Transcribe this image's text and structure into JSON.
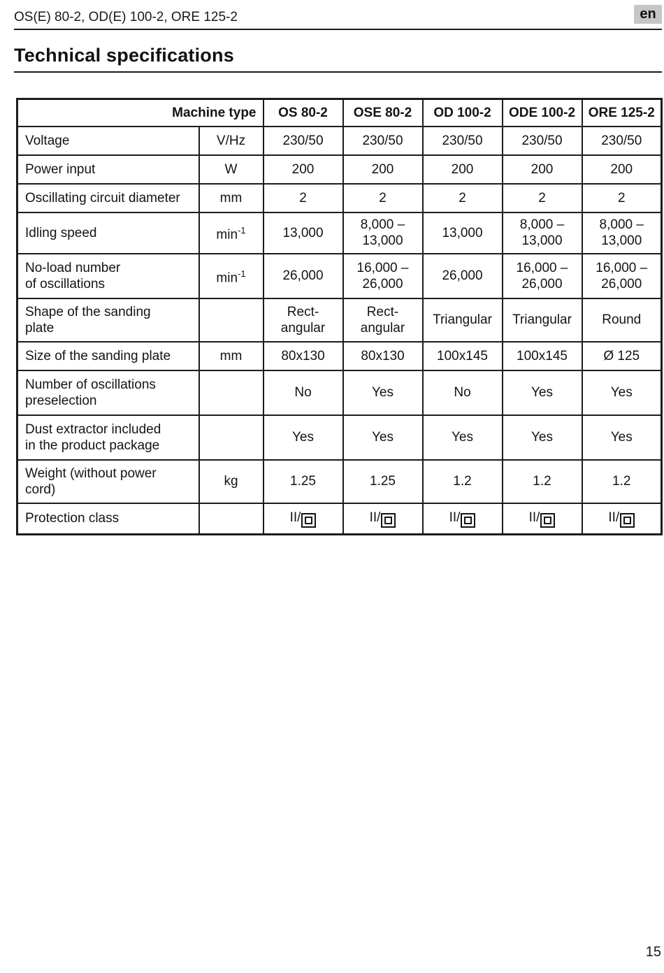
{
  "page": {
    "header_title": "OS(E) 80-2, OD(E) 100-2, ORE 125-2",
    "language_badge": "en",
    "section_title": "Technical specifications",
    "page_number": "15"
  },
  "table": {
    "corner_label": "Machine type",
    "machine_columns": [
      "OS 80-2",
      "OSE 80-2",
      "OD 100-2",
      "ODE 100-2",
      "ORE 125-2"
    ],
    "rows": [
      {
        "label": "Voltage",
        "unit": "V/Hz",
        "values": [
          "230/50",
          "230/50",
          "230/50",
          "230/50",
          "230/50"
        ]
      },
      {
        "label": "Power input",
        "unit": "W",
        "values": [
          "200",
          "200",
          "200",
          "200",
          "200"
        ]
      },
      {
        "label": "Oscillating circuit diameter",
        "unit": "mm",
        "values": [
          "2",
          "2",
          "2",
          "2",
          "2"
        ]
      },
      {
        "label": "Idling speed",
        "unit": "min^-1",
        "values": [
          "13,000",
          "8,000 –\n13,000",
          "13,000",
          "8,000 –\n13,000",
          "8,000 –\n13,000"
        ]
      },
      {
        "label": "No-load number\nof oscillations",
        "unit": "min^-1",
        "values": [
          "26,000",
          "16,000 –\n26,000",
          "26,000",
          "16,000 –\n26,000",
          "16,000 –\n26,000"
        ]
      },
      {
        "label": "Shape of the sanding\nplate",
        "unit": "",
        "values": [
          "Rect-\nangular",
          "Rect-\nangular",
          "Triangular",
          "Triangular",
          "Round"
        ]
      },
      {
        "label": "Size of the sanding plate",
        "unit": "mm",
        "values": [
          "80x130",
          "80x130",
          "100x145",
          "100x145",
          "Ø 125"
        ]
      },
      {
        "label": "Number of oscillations\npreselection",
        "unit": "",
        "values": [
          "No",
          "Yes",
          "No",
          "Yes",
          "Yes"
        ]
      },
      {
        "label": "Dust extractor included\nin the product package",
        "unit": "",
        "values": [
          "Yes",
          "Yes",
          "Yes",
          "Yes",
          "Yes"
        ]
      },
      {
        "label": "Weight (without power\ncord)",
        "unit": "kg",
        "values": [
          "1.25",
          "1.25",
          "1.2",
          "1.2",
          "1.2"
        ]
      },
      {
        "label": "Protection class",
        "unit": "",
        "values": [
          "II/",
          "II/",
          "II/",
          "II/",
          "II/"
        ],
        "value_icon": "double-insulation-icon"
      }
    ]
  }
}
